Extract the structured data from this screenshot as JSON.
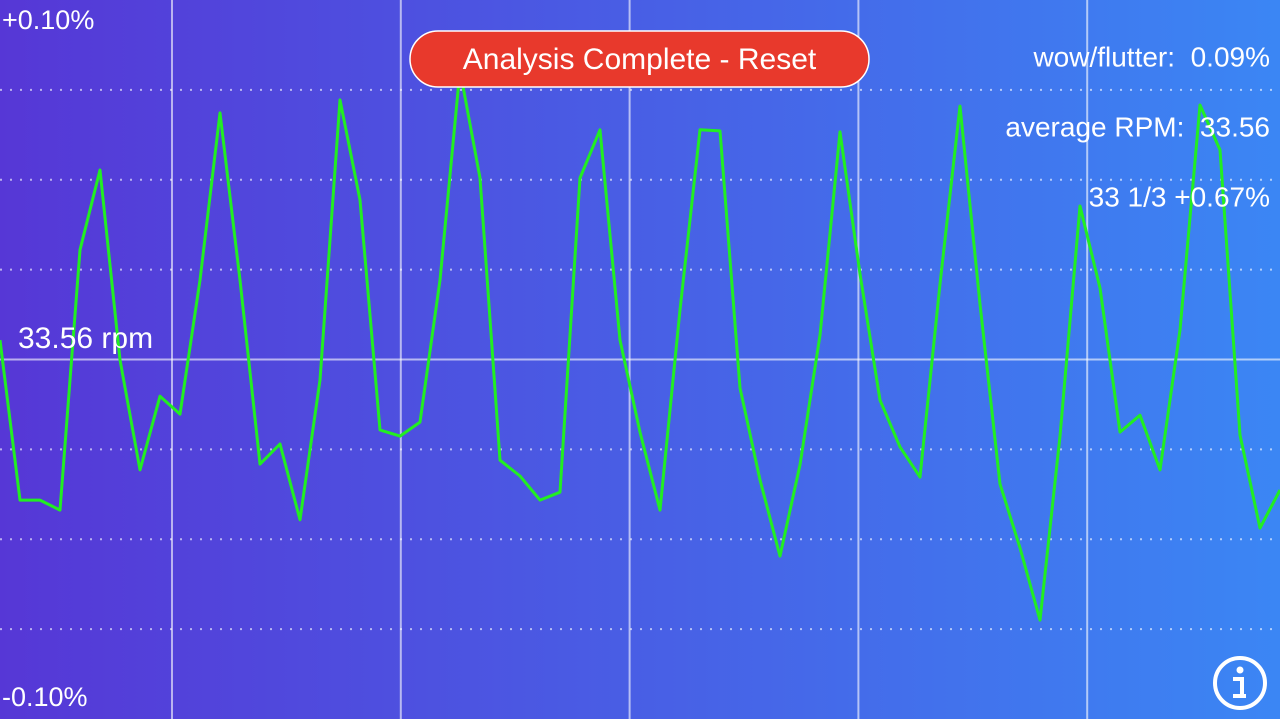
{
  "chart_data": {
    "type": "line",
    "series": [
      {
        "color": "#22ee22",
        "values": [
          0.0054,
          -0.0391,
          -0.0391,
          -0.0419,
          0.0305,
          0.0527,
          -0.0001,
          -0.0307,
          -0.0102,
          -0.0152,
          0.0221,
          0.0686,
          0.0221,
          -0.0291,
          -0.0235,
          -0.0446,
          -0.0057,
          0.0722,
          0.0444,
          -0.0196,
          -0.0213,
          -0.0174,
          0.0221,
          0.0805,
          0.0505,
          -0.028,
          -0.0324,
          -0.0391,
          -0.0369,
          0.0505,
          0.0639,
          0.0054,
          -0.0202,
          -0.0419,
          0.0138,
          0.0639,
          0.0636,
          -0.0079,
          -0.0335,
          -0.0547,
          -0.0293,
          0.0068,
          0.0633,
          0.0238,
          -0.0113,
          -0.0243,
          -0.0327,
          0.021,
          0.0705,
          0.0154,
          -0.0346,
          -0.0524,
          -0.0725,
          -0.0213,
          0.0427,
          0.0199,
          -0.0202,
          -0.0155,
          -0.0307,
          0.0082,
          0.0708,
          0.0583,
          -0.021,
          -0.0469,
          -0.0363
        ]
      }
    ],
    "ylim": [
      -0.1,
      0.1
    ],
    "yticks": [
      {
        "value": 0.1,
        "label": "+0.10%"
      },
      {
        "value": -0.1,
        "label": "-0.10%"
      }
    ],
    "center_label": "33.56 rpm"
  },
  "controls": {
    "reset_button": "Analysis Complete - Reset"
  },
  "stats": [
    "wow/flutter:  0.09%",
    "average RPM:  33.56",
    "33 1/3 +0.67%"
  ]
}
